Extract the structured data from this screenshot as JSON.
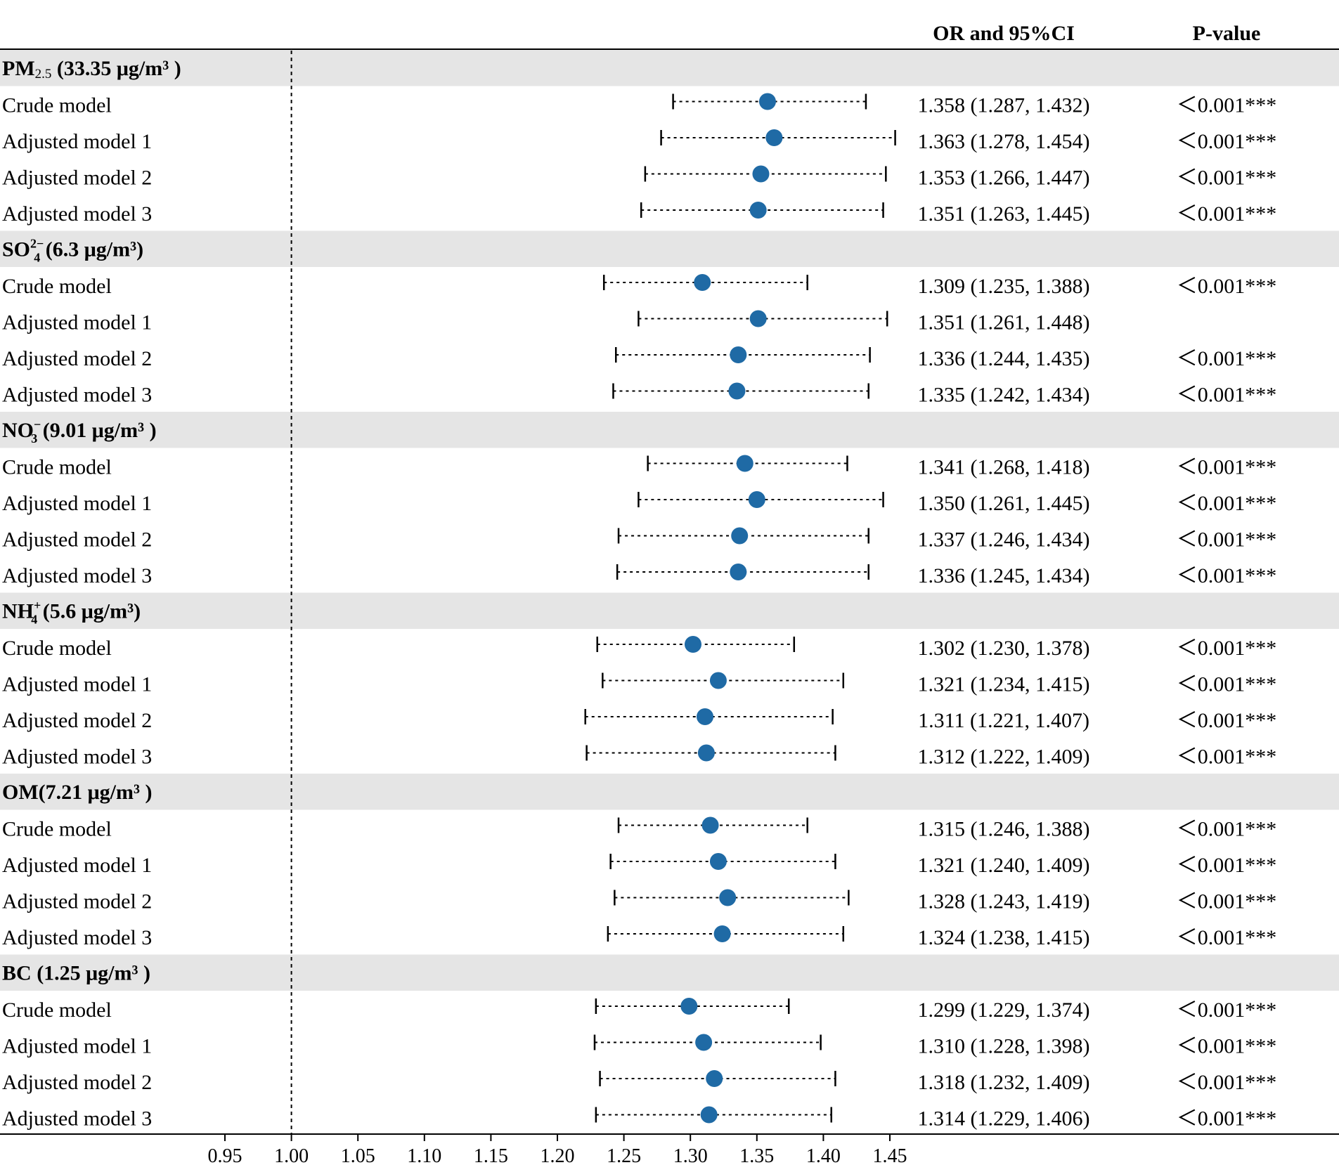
{
  "chart_data": {
    "type": "forest",
    "columns": {
      "or_header": "OR and 95%CI",
      "p_header": "P-value"
    },
    "x_ticks": [
      "0.95",
      "1.00",
      "1.05",
      "1.10",
      "1.15",
      "1.20",
      "1.25",
      "1.30",
      "1.35",
      "1.40",
      "1.45"
    ],
    "xlim": [
      0.95,
      1.45
    ],
    "reference_line": 1.0,
    "groups": [
      {
        "label": "PM2.5 (33.35 μg/m³)",
        "label_parts": {
          "name": "PM",
          "sub": "2.5",
          "sup": "",
          "conc": "(33.35 μg/m³ )"
        },
        "rows": [
          {
            "model": "Crude model",
            "or": 1.358,
            "lo": 1.287,
            "hi": 1.432,
            "ci_text": "1.358 (1.287, 1.432)",
            "p": "<0.001***"
          },
          {
            "model": "Adjusted model 1",
            "or": 1.363,
            "lo": 1.278,
            "hi": 1.454,
            "ci_text": "1.363 (1.278, 1.454)",
            "p": "<0.001***"
          },
          {
            "model": "Adjusted model 2",
            "or": 1.353,
            "lo": 1.266,
            "hi": 1.447,
            "ci_text": "1.353 (1.266, 1.447)",
            "p": "<0.001***"
          },
          {
            "model": "Adjusted model 3",
            "or": 1.351,
            "lo": 1.263,
            "hi": 1.445,
            "ci_text": "1.351 (1.263, 1.445)",
            "p": "<0.001***"
          }
        ]
      },
      {
        "label": "SO4 2- (6.3 μg/m³)",
        "label_parts": {
          "name": "SO",
          "sub": "4",
          "sup": "2−",
          "conc": "(6.3 μg/m³)"
        },
        "rows": [
          {
            "model": "Crude model",
            "or": 1.309,
            "lo": 1.235,
            "hi": 1.388,
            "ci_text": "1.309 (1.235, 1.388)",
            "p": "<0.001***"
          },
          {
            "model": "Adjusted model 1",
            "or": 1.351,
            "lo": 1.261,
            "hi": 1.448,
            "ci_text": "1.351 (1.261, 1.448)",
            "p": ""
          },
          {
            "model": "Adjusted model 2",
            "or": 1.336,
            "lo": 1.244,
            "hi": 1.435,
            "ci_text": "1.336 (1.244, 1.435)",
            "p": "<0.001***"
          },
          {
            "model": "Adjusted model 3",
            "or": 1.335,
            "lo": 1.242,
            "hi": 1.434,
            "ci_text": "1.335 (1.242, 1.434)",
            "p": "<0.001***"
          }
        ]
      },
      {
        "label": "NO3 - (9.01 μg/m³)",
        "label_parts": {
          "name": "NO",
          "sub": "3",
          "sup": "−",
          "conc": "(9.01 μg/m³ )"
        },
        "rows": [
          {
            "model": "Crude model",
            "or": 1.341,
            "lo": 1.268,
            "hi": 1.418,
            "ci_text": "1.341 (1.268, 1.418)",
            "p": "<0.001***"
          },
          {
            "model": "Adjusted model 1",
            "or": 1.35,
            "lo": 1.261,
            "hi": 1.445,
            "ci_text": "1.350 (1.261, 1.445)",
            "p": "<0.001***"
          },
          {
            "model": "Adjusted model 2",
            "or": 1.337,
            "lo": 1.246,
            "hi": 1.434,
            "ci_text": "1.337 (1.246, 1.434)",
            "p": "<0.001***"
          },
          {
            "model": "Adjusted model 3",
            "or": 1.336,
            "lo": 1.245,
            "hi": 1.434,
            "ci_text": "1.336 (1.245, 1.434)",
            "p": "<0.001***"
          }
        ]
      },
      {
        "label": "NH4 + (5.6 μg/m³)",
        "label_parts": {
          "name": "NH",
          "sub": "4",
          "sup": "+",
          "conc": "(5.6 μg/m³)"
        },
        "rows": [
          {
            "model": "Crude model",
            "or": 1.302,
            "lo": 1.23,
            "hi": 1.378,
            "ci_text": "1.302 (1.230, 1.378)",
            "p": "<0.001***"
          },
          {
            "model": "Adjusted model 1",
            "or": 1.321,
            "lo": 1.234,
            "hi": 1.415,
            "ci_text": "1.321 (1.234, 1.415)",
            "p": "<0.001***"
          },
          {
            "model": "Adjusted model 2",
            "or": 1.311,
            "lo": 1.221,
            "hi": 1.407,
            "ci_text": "1.311 (1.221, 1.407)",
            "p": "<0.001***"
          },
          {
            "model": "Adjusted model 3",
            "or": 1.312,
            "lo": 1.222,
            "hi": 1.409,
            "ci_text": "1.312 (1.222, 1.409)",
            "p": "<0.001***"
          }
        ]
      },
      {
        "label": "OM(7.21 μg/m³)",
        "label_parts": {
          "name": "OM",
          "sub": "",
          "sup": "",
          "conc": "(7.21 μg/m³ )"
        },
        "rows": [
          {
            "model": "Crude model",
            "or": 1.315,
            "lo": 1.246,
            "hi": 1.388,
            "ci_text": "1.315 (1.246, 1.388)",
            "p": "<0.001***"
          },
          {
            "model": "Adjusted model 1",
            "or": 1.321,
            "lo": 1.24,
            "hi": 1.409,
            "ci_text": "1.321 (1.240, 1.409)",
            "p": "<0.001***"
          },
          {
            "model": "Adjusted model 2",
            "or": 1.328,
            "lo": 1.243,
            "hi": 1.419,
            "ci_text": "1.328 (1.243, 1.419)",
            "p": "<0.001***"
          },
          {
            "model": "Adjusted model 3",
            "or": 1.324,
            "lo": 1.238,
            "hi": 1.415,
            "ci_text": "1.324 (1.238, 1.415)",
            "p": "<0.001***"
          }
        ]
      },
      {
        "label": "BC (1.25 μg/m³)",
        "label_parts": {
          "name": "BC ",
          "sub": "",
          "sup": "",
          "conc": "(1.25 μg/m³ )"
        },
        "rows": [
          {
            "model": "Crude model",
            "or": 1.299,
            "lo": 1.229,
            "hi": 1.374,
            "ci_text": "1.299 (1.229, 1.374)",
            "p": "<0.001***"
          },
          {
            "model": "Adjusted model 1",
            "or": 1.31,
            "lo": 1.228,
            "hi": 1.398,
            "ci_text": "1.310 (1.228, 1.398)",
            "p": "<0.001***"
          },
          {
            "model": "Adjusted model 2",
            "or": 1.318,
            "lo": 1.232,
            "hi": 1.409,
            "ci_text": "1.318 (1.232, 1.409)",
            "p": "<0.001***"
          },
          {
            "model": "Adjusted model 3",
            "or": 1.314,
            "lo": 1.229,
            "hi": 1.406,
            "ci_text": "1.314 (1.229, 1.406)",
            "p": "<0.001***"
          }
        ]
      }
    ],
    "colors": {
      "point": "#1f6aa5",
      "group_band": "#e5e5e5",
      "line": "#000000"
    }
  }
}
